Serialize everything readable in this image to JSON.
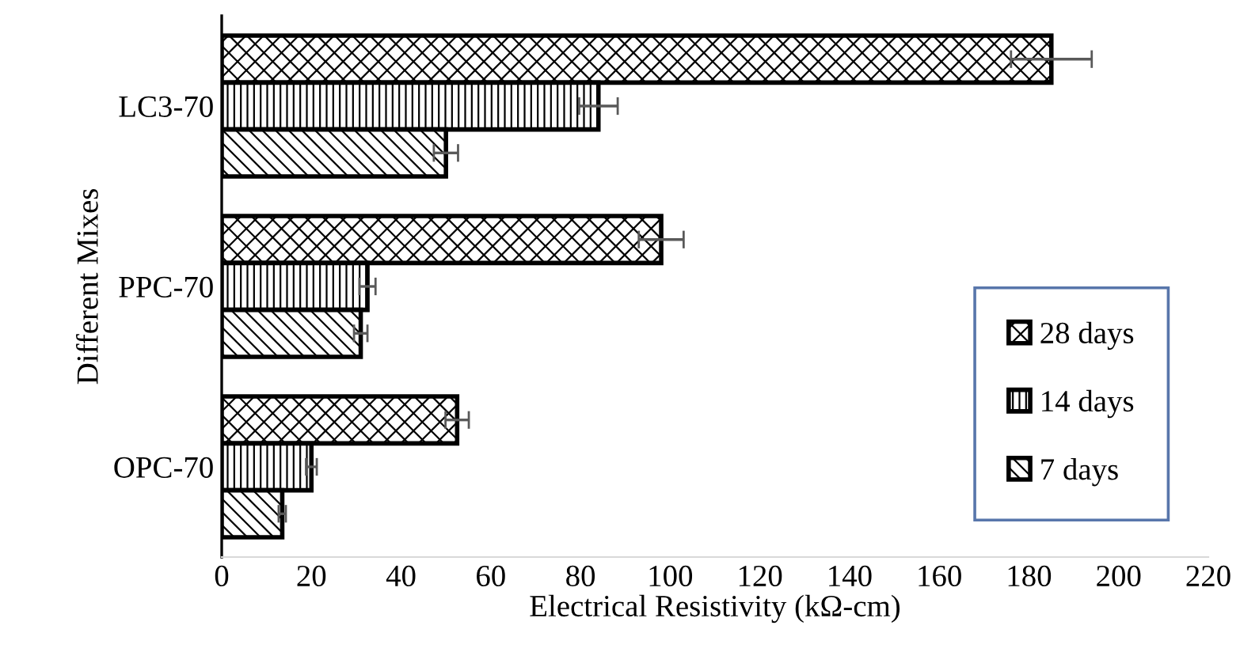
{
  "chart_data": {
    "type": "bar",
    "orientation": "horizontal",
    "xlabel": "Electrical Resistivity (kΩ-cm)",
    "ylabel": "Different Mixes",
    "categories": [
      "LC3-70",
      "PPC-70",
      "OPC-70"
    ],
    "series": [
      {
        "name": "28 days",
        "color": "#000000",
        "values": [
          185,
          98,
          52.5
        ],
        "errors": [
          9,
          5,
          2.6
        ]
      },
      {
        "name": "14 days",
        "color": "#000000",
        "values": [
          84,
          32.5,
          20
        ],
        "errors": [
          4.3,
          1.8,
          1.2
        ]
      },
      {
        "name": "7 days",
        "color": "#000000",
        "values": [
          50,
          31,
          13.5
        ],
        "errors": [
          2.7,
          1.5,
          0.8
        ]
      }
    ],
    "xlim": [
      0,
      220
    ],
    "xticks": [
      0,
      20,
      40,
      60,
      80,
      100,
      120,
      140,
      160,
      180,
      200,
      220
    ],
    "grid": false,
    "legend": "bottom right"
  }
}
